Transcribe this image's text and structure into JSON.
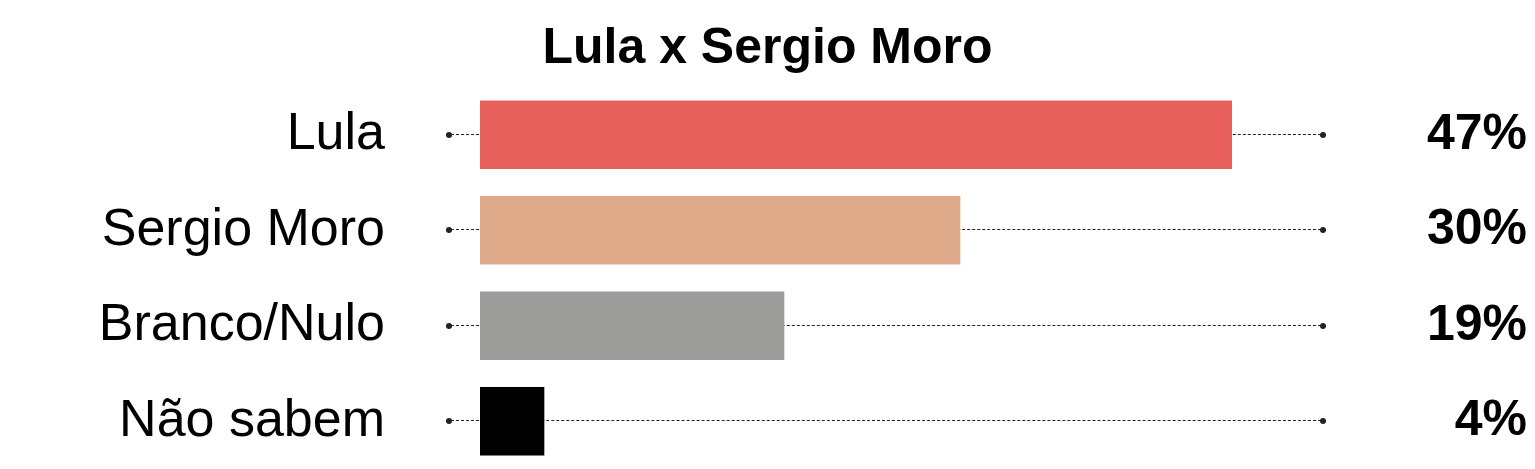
{
  "chart_data": {
    "type": "bar",
    "orientation": "horizontal",
    "title": "Lula x Sergio Moro",
    "categories": [
      "Lula",
      "Sergio Moro",
      "Branco/Nulo",
      "Não sabem"
    ],
    "values": [
      47,
      30,
      19,
      4
    ],
    "colors": [
      "#e8605c",
      "#deaa89",
      "#9d9d9c",
      "#000000"
    ],
    "value_labels": [
      "47%",
      "30%",
      "19%",
      "4%"
    ],
    "grid": false,
    "legend": false
  }
}
